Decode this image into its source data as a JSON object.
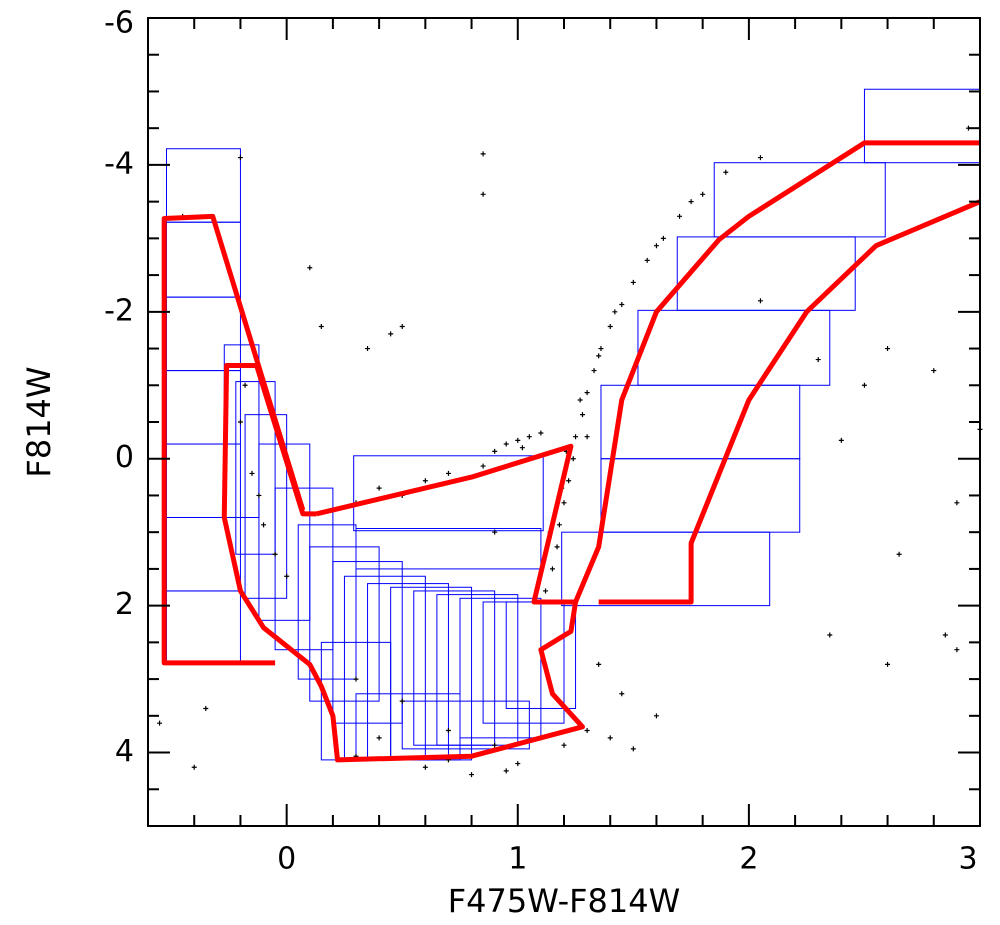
{
  "chart_data": {
    "type": "scatter",
    "xlabel": "F475W-F814W",
    "ylabel": "F814W",
    "xlim": [
      -0.6,
      3
    ],
    "ylim": [
      -6,
      5
    ],
    "y_inverted": true,
    "xticks": [
      0,
      1,
      2,
      3
    ],
    "yticks": [
      -6,
      -4,
      -2,
      0,
      2,
      4
    ],
    "xminorticks": [
      -0.4,
      -0.2,
      0.2,
      0.4,
      0.6,
      0.8,
      1.2,
      1.4,
      1.6,
      1.8,
      2.2,
      2.4,
      2.6,
      2.8
    ],
    "yminorticks": [
      -5.5,
      -5,
      -4.5,
      -3.5,
      -3,
      -2.5,
      -1.5,
      -1,
      -0.5,
      0.5,
      1,
      1.5,
      2.5,
      3,
      3.5,
      4.5
    ],
    "points": {
      "color": "#000000",
      "x": [
        1.15,
        1.17,
        1.18,
        1.2,
        1.22,
        1.24,
        1.25,
        1.28,
        1.3,
        1.33,
        1.36,
        1.4,
        1.45,
        1.5,
        1.56,
        1.63,
        1.7,
        1.8,
        1.9,
        2.05,
        1.12,
        1.14,
        1.19,
        1.21,
        1.27,
        1.35,
        1.42,
        1.6,
        1.75,
        1.3,
        0.95,
        1.0,
        1.05,
        1.1,
        0.9,
        1.02,
        0.85,
        0.4,
        0.5,
        0.3,
        0.6,
        0.2,
        -0.2,
        -0.15,
        -0.1,
        -0.05,
        0.0,
        -0.18,
        -0.12,
        0.3,
        0.5,
        0.7,
        0.9,
        1.1,
        0.6,
        0.8,
        1.0,
        1.2,
        1.3,
        0.4,
        0.7,
        1.4,
        1.5,
        0.3,
        0.95,
        1.35,
        1.45,
        1.6,
        0.85,
        0.85,
        -0.2,
        0.1,
        0.5,
        0.35,
        0.45,
        2.05,
        2.3,
        2.5,
        2.8,
        2.4,
        2.9,
        3.0,
        2.6,
        2.65,
        2.35,
        2.85,
        2.9,
        2.95,
        -0.55,
        -0.4,
        -0.35,
        0.7,
        0.9,
        0.15,
        -0.45,
        2.6
      ],
      "y": [
        1.5,
        1.2,
        0.9,
        0.6,
        0.3,
        0.0,
        -0.3,
        -0.6,
        -0.9,
        -1.2,
        -1.5,
        -1.8,
        -2.1,
        -2.4,
        -2.7,
        -3.0,
        -3.3,
        -3.6,
        -3.9,
        -4.1,
        1.8,
        1.0,
        0.4,
        -0.1,
        -0.8,
        -1.4,
        -2.0,
        -2.9,
        -3.5,
        -0.3,
        -0.2,
        -0.25,
        -0.3,
        -0.35,
        -0.1,
        -0.15,
        0.1,
        0.4,
        0.5,
        0.6,
        0.3,
        0.7,
        -0.5,
        0.2,
        0.9,
        1.3,
        1.6,
        -1.0,
        0.5,
        3.0,
        3.3,
        3.7,
        3.9,
        3.8,
        4.2,
        4.3,
        4.15,
        3.9,
        3.7,
        3.8,
        4.1,
        3.8,
        3.95,
        4.05,
        4.25,
        2.8,
        3.2,
        3.5,
        -4.15,
        -3.6,
        -4.1,
        -2.6,
        -1.8,
        -1.5,
        -1.7,
        -2.15,
        -1.35,
        -1.0,
        -1.2,
        -0.25,
        0.6,
        -0.4,
        2.8,
        1.3,
        2.4,
        2.4,
        2.6,
        -4.5,
        3.6,
        4.2,
        3.4,
        0.2,
        1.0,
        -1.8,
        -3.3,
        -1.5
      ]
    },
    "boxes": {
      "color": "#0000ff",
      "x0": [
        -0.52,
        -0.52,
        -0.52,
        -0.52,
        -0.52,
        -0.52,
        -0.52,
        0.29,
        1.85,
        1.69,
        1.52,
        1.36,
        1.36,
        1.19,
        2.5,
        -0.27,
        -0.22,
        -0.18,
        -0.12,
        -0.05,
        0.05,
        0.1,
        0.2,
        0.25,
        0.35,
        0.45,
        0.55,
        0.65,
        0.75,
        0.85,
        0.95,
        0.15,
        0.3,
        0.5,
        0.3
      ],
      "x1": [
        -0.2,
        -0.2,
        -0.2,
        -0.2,
        -0.2,
        -0.2,
        -0.2,
        1.11,
        2.59,
        2.46,
        2.35,
        2.22,
        2.22,
        2.09,
        3.0,
        -0.12,
        -0.05,
        0.0,
        0.1,
        0.2,
        0.3,
        0.4,
        0.5,
        0.6,
        0.7,
        0.8,
        0.9,
        1.0,
        1.1,
        1.2,
        1.25,
        0.45,
        0.75,
        1.05,
        1.1
      ],
      "y0": [
        -4.22,
        -3.22,
        -2.2,
        -1.2,
        -0.2,
        0.8,
        1.8,
        -0.04,
        -4.03,
        -3.02,
        -2.02,
        -1.0,
        0.0,
        1.0,
        -5.03,
        -1.55,
        -1.05,
        -0.6,
        -0.2,
        0.4,
        0.9,
        1.2,
        1.4,
        1.6,
        1.7,
        1.75,
        1.8,
        1.85,
        1.9,
        1.95,
        1.95,
        2.5,
        3.2,
        3.3,
        0.95
      ],
      "y1": [
        -3.22,
        -2.2,
        -1.2,
        -0.2,
        0.8,
        1.8,
        2.8,
        0.98,
        -3.02,
        -2.02,
        -1.0,
        0.0,
        1.0,
        2.0,
        -4.03,
        0.8,
        1.3,
        1.9,
        2.2,
        2.6,
        3.0,
        3.3,
        3.6,
        4.1,
        4.1,
        4.1,
        3.9,
        3.9,
        3.8,
        3.6,
        3.4,
        4.1,
        4.1,
        3.95,
        1.5
      ]
    },
    "outlines": [
      {
        "color": "#ff0000",
        "x": [
          -0.05,
          -0.53,
          -0.53,
          -0.32,
          0.07
        ],
        "y": [
          2.78,
          2.78,
          -3.27,
          -3.3,
          0.7
        ]
      },
      {
        "color": "#ff0000",
        "x": [
          0.13,
          0.8,
          1.23,
          1.07,
          1.25,
          1.23,
          1.1,
          1.15,
          1.28,
          0.8,
          0.22,
          0.2,
          0.15,
          0.1,
          -0.1,
          -0.2,
          -0.27,
          -0.26,
          -0.13,
          0.07,
          0.13
        ],
        "y": [
          0.75,
          0.25,
          -0.17,
          1.95,
          1.95,
          2.35,
          2.6,
          3.2,
          3.65,
          4.05,
          4.1,
          3.5,
          3.1,
          2.8,
          2.3,
          1.8,
          0.8,
          -1.27,
          -1.27,
          0.75,
          0.75
        ]
      },
      {
        "color": "#ff0000",
        "x": [
          1.25,
          1.35,
          1.45,
          1.6,
          1.87,
          2.0,
          2.5,
          3.0
        ],
        "y": [
          1.95,
          1.2,
          -0.8,
          -2.0,
          -2.98,
          -3.3,
          -4.3,
          -4.3
        ]
      },
      {
        "color": "#ff0000",
        "x": [
          1.35,
          1.75,
          1.75,
          2.0,
          2.25,
          2.55,
          3.0
        ],
        "y": [
          1.95,
          1.95,
          1.15,
          -0.8,
          -2.0,
          -2.9,
          -3.5
        ]
      }
    ]
  }
}
